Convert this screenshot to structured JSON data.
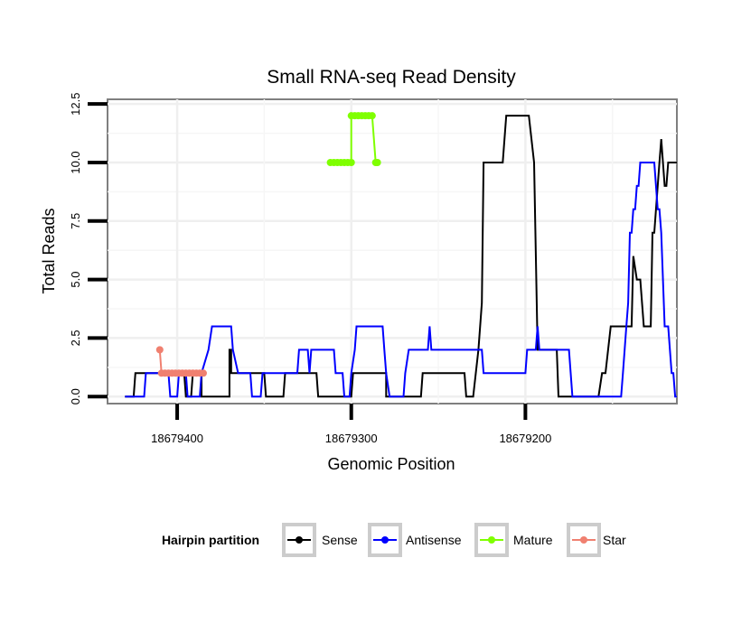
{
  "chart_data": {
    "type": "line",
    "title": "Small RNA-seq Read Density",
    "xlabel": "Genomic Position",
    "ylabel": "Total Reads",
    "xlim": [
      18679440,
      18679113
    ],
    "ylim": [
      -0.3,
      12.7
    ],
    "x_reversed": true,
    "x_ticks": [
      {
        "value": 18679400,
        "label": "18679400"
      },
      {
        "value": 18679300,
        "label": "18679300"
      },
      {
        "value": 18679200,
        "label": "18679200"
      }
    ],
    "y_ticks": [
      {
        "value": 0,
        "label": "0.0"
      },
      {
        "value": 2.5,
        "label": "2.5"
      },
      {
        "value": 5,
        "label": "5.0"
      },
      {
        "value": 7.5,
        "label": "7.5"
      },
      {
        "value": 10,
        "label": "10.0"
      },
      {
        "value": 12.5,
        "label": "12.5"
      }
    ],
    "grid": true,
    "legend": {
      "title": "Hairpin partition",
      "position": "bottom"
    },
    "series": [
      {
        "name": "Sense",
        "color": "#000000",
        "points": [
          [
            18679430,
            0
          ],
          [
            18679425,
            0
          ],
          [
            18679424,
            1
          ],
          [
            18679415,
            1
          ],
          [
            18679405,
            1
          ],
          [
            18679396,
            1
          ],
          [
            18679395,
            0
          ],
          [
            18679392,
            0
          ],
          [
            18679391,
            1
          ],
          [
            18679386,
            1
          ],
          [
            18679386,
            0
          ],
          [
            18679370,
            0
          ],
          [
            18679370,
            2
          ],
          [
            18679369,
            2
          ],
          [
            18679369,
            1
          ],
          [
            18679350,
            1
          ],
          [
            18679349,
            0
          ],
          [
            18679339,
            0
          ],
          [
            18679338,
            1
          ],
          [
            18679320,
            1
          ],
          [
            18679319,
            0
          ],
          [
            18679300,
            0
          ],
          [
            18679299,
            1
          ],
          [
            18679280,
            1
          ],
          [
            18679280,
            0
          ],
          [
            18679260,
            0
          ],
          [
            18679259,
            1
          ],
          [
            18679235,
            1
          ],
          [
            18679234,
            0
          ],
          [
            18679230,
            0
          ],
          [
            18679227,
            2
          ],
          [
            18679225,
            4
          ],
          [
            18679224,
            10
          ],
          [
            18679215,
            10
          ],
          [
            18679213,
            10
          ],
          [
            18679211,
            12
          ],
          [
            18679200,
            12
          ],
          [
            18679198,
            12
          ],
          [
            18679195,
            10
          ],
          [
            18679193,
            2
          ],
          [
            18679185,
            2
          ],
          [
            18679182,
            2
          ],
          [
            18679181,
            0
          ],
          [
            18679160,
            0
          ],
          [
            18679158,
            0
          ],
          [
            18679156,
            1
          ],
          [
            18679154,
            1
          ],
          [
            18679151,
            3
          ],
          [
            18679140,
            3
          ],
          [
            18679139,
            3
          ],
          [
            18679138,
            6
          ],
          [
            18679136,
            5
          ],
          [
            18679134,
            5
          ],
          [
            18679132,
            3
          ],
          [
            18679128,
            3
          ],
          [
            18679127,
            7
          ],
          [
            18679126,
            7
          ],
          [
            18679125,
            8
          ],
          [
            18679124,
            9
          ],
          [
            18679123,
            10
          ],
          [
            18679122,
            11
          ],
          [
            18679121,
            10
          ],
          [
            18679120,
            9
          ],
          [
            18679119,
            9
          ],
          [
            18679118,
            10
          ],
          [
            18679116,
            10
          ],
          [
            18679113,
            10
          ]
        ]
      },
      {
        "name": "Antisense",
        "color": "#0000ff",
        "points": [
          [
            18679430,
            0
          ],
          [
            18679419,
            0
          ],
          [
            18679418,
            1
          ],
          [
            18679405,
            1
          ],
          [
            18679404,
            0
          ],
          [
            18679400,
            0
          ],
          [
            18679399,
            1
          ],
          [
            18679395,
            1
          ],
          [
            18679394,
            0
          ],
          [
            18679387,
            0
          ],
          [
            18679386,
            1
          ],
          [
            18679382,
            2
          ],
          [
            18679380,
            3
          ],
          [
            18679369,
            3
          ],
          [
            18679368,
            2
          ],
          [
            18679365,
            1
          ],
          [
            18679358,
            1
          ],
          [
            18679357,
            0
          ],
          [
            18679352,
            0
          ],
          [
            18679351,
            1
          ],
          [
            18679331,
            1
          ],
          [
            18679330,
            2
          ],
          [
            18679325,
            2
          ],
          [
            18679324,
            1
          ],
          [
            18679323,
            2
          ],
          [
            18679310,
            2
          ],
          [
            18679309,
            1
          ],
          [
            18679305,
            1
          ],
          [
            18679304,
            0
          ],
          [
            18679301,
            0
          ],
          [
            18679300,
            1
          ],
          [
            18679298,
            2
          ],
          [
            18679297,
            3
          ],
          [
            18679282,
            3
          ],
          [
            18679281,
            2
          ],
          [
            18679280,
            1
          ],
          [
            18679278,
            0
          ],
          [
            18679270,
            0
          ],
          [
            18679269,
            1
          ],
          [
            18679267,
            2
          ],
          [
            18679256,
            2
          ],
          [
            18679255,
            3
          ],
          [
            18679254,
            2
          ],
          [
            18679225,
            2
          ],
          [
            18679224,
            1
          ],
          [
            18679200,
            1
          ],
          [
            18679199,
            2
          ],
          [
            18679194,
            2
          ],
          [
            18679193,
            3
          ],
          [
            18679192,
            2
          ],
          [
            18679175,
            2
          ],
          [
            18679174,
            1
          ],
          [
            18679173,
            0
          ],
          [
            18679150,
            0
          ],
          [
            18679145,
            0
          ],
          [
            18679144,
            1
          ],
          [
            18679143,
            2
          ],
          [
            18679142,
            3
          ],
          [
            18679141,
            4
          ],
          [
            18679140,
            7
          ],
          [
            18679139,
            7
          ],
          [
            18679138,
            8
          ],
          [
            18679137,
            8
          ],
          [
            18679136,
            9
          ],
          [
            18679135,
            9
          ],
          [
            18679134,
            10
          ],
          [
            18679126,
            10
          ],
          [
            18679125,
            9
          ],
          [
            18679124,
            8
          ],
          [
            18679123,
            8
          ],
          [
            18679122,
            7
          ],
          [
            18679121,
            5
          ],
          [
            18679120,
            3
          ],
          [
            18679118,
            3
          ],
          [
            18679117,
            2
          ],
          [
            18679116,
            1
          ],
          [
            18679115,
            1
          ],
          [
            18679114,
            0
          ],
          [
            18679113,
            0
          ]
        ]
      },
      {
        "name": "Mature",
        "color": "#7fff00",
        "points": [
          [
            18679312,
            10
          ],
          [
            18679310,
            10
          ],
          [
            18679308,
            10
          ],
          [
            18679306,
            10
          ],
          [
            18679304,
            10
          ],
          [
            18679302,
            10
          ],
          [
            18679300,
            10
          ],
          [
            18679300,
            12
          ],
          [
            18679298,
            12
          ],
          [
            18679296,
            12
          ],
          [
            18679294,
            12
          ],
          [
            18679292,
            12
          ],
          [
            18679290,
            12
          ],
          [
            18679288,
            12
          ],
          [
            18679286,
            10
          ],
          [
            18679285,
            10
          ]
        ]
      },
      {
        "name": "Star",
        "color": "#f08070",
        "points": [
          [
            18679410,
            2
          ],
          [
            18679409,
            1
          ],
          [
            18679407,
            1
          ],
          [
            18679405,
            1
          ],
          [
            18679403,
            1
          ],
          [
            18679401,
            1
          ],
          [
            18679399,
            1
          ],
          [
            18679397,
            1
          ],
          [
            18679395,
            1
          ],
          [
            18679393,
            1
          ],
          [
            18679391,
            1
          ],
          [
            18679389,
            1
          ],
          [
            18679387,
            1
          ],
          [
            18679385,
            1
          ]
        ]
      }
    ]
  }
}
